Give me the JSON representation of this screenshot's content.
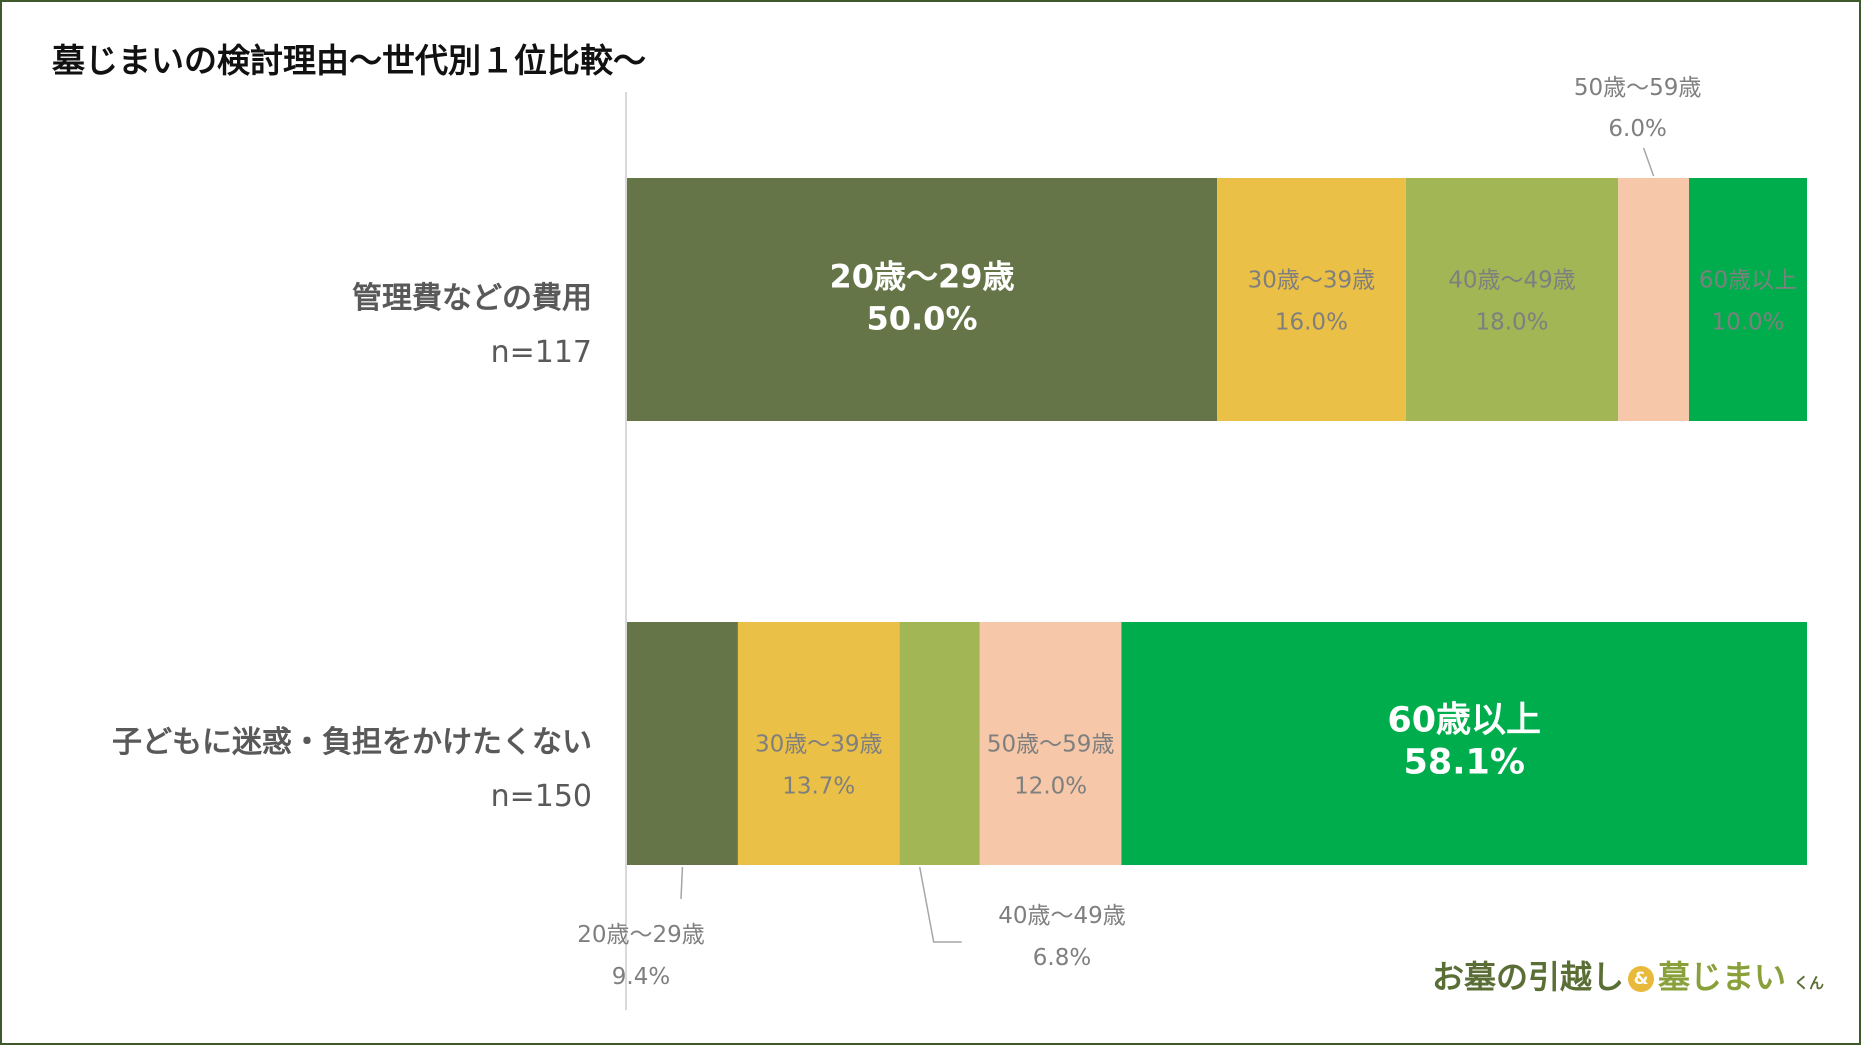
{
  "chart_data": {
    "type": "bar",
    "orientation": "horizontal",
    "stacked": true,
    "percent_stacked": true,
    "title": "墓じまいの検討理由～世代別１位比較～",
    "xlim": [
      0,
      100
    ],
    "grid": false,
    "legend": "none",
    "categories": [
      {
        "label": "管理費などの費用",
        "n": "n=117"
      },
      {
        "label": "子どもに迷惑・負担をかけたくない",
        "n": "n=150"
      }
    ],
    "series": [
      {
        "name": "20歳～29歳",
        "color": "#667548",
        "values": [
          50.0,
          9.4
        ],
        "labels": [
          "50.0%",
          "9.4%"
        ]
      },
      {
        "name": "30歳～39歳",
        "color": "#ebc046",
        "values": [
          16.0,
          13.7
        ],
        "labels": [
          "16.0%",
          "13.7%"
        ]
      },
      {
        "name": "40歳～49歳",
        "color": "#a2b656",
        "values": [
          18.0,
          6.8
        ],
        "labels": [
          "18.0%",
          "6.8%"
        ]
      },
      {
        "name": "50歳～59歳",
        "color": "#f6c8a9",
        "values": [
          6.0,
          12.0
        ],
        "labels": [
          "6.0%",
          "12.0%"
        ]
      },
      {
        "name": "60歳以上",
        "color": "#00ad4c",
        "values": [
          10.0,
          58.1
        ],
        "labels": [
          "10.0%",
          "58.1%"
        ]
      }
    ]
  },
  "logo": {
    "part1": "お墓の引越し",
    "amp": "&",
    "part2": "墓じまい",
    "part3": "くん"
  }
}
